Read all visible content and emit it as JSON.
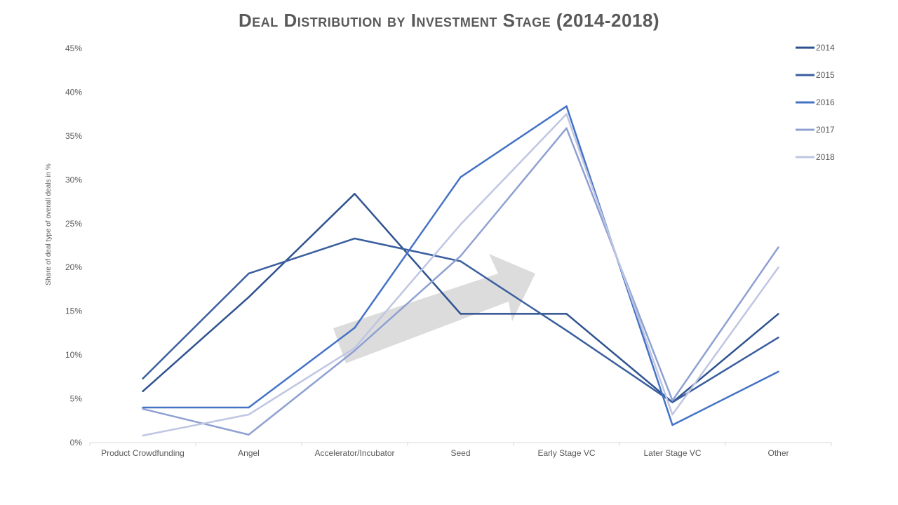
{
  "chart_data": {
    "type": "line",
    "title": "Deal Distribution by Investment Stage (2014-2018)",
    "xlabel": "",
    "ylabel": "Share of deal type of overall deals in %",
    "ylim": [
      0,
      45
    ],
    "yticks": [
      "0%",
      "5%",
      "10%",
      "15%",
      "20%",
      "25%",
      "30%",
      "35%",
      "40%",
      "45%"
    ],
    "categories": [
      "Product Crowdfunding",
      "Angel",
      "Accelerator/Incubator",
      "Seed",
      "Early Stage VC",
      "Later Stage VC",
      "Other"
    ],
    "legend_position": "right",
    "grid": false,
    "series": [
      {
        "name": "2014",
        "color": "#2f528f",
        "values": [
          5.85,
          16.6,
          28.4,
          14.7,
          14.7,
          4.6,
          14.7
        ]
      },
      {
        "name": "2015",
        "color": "#3a5e9e",
        "values": [
          7.3,
          19.3,
          23.3,
          20.7,
          12.8,
          4.6,
          12.0
        ]
      },
      {
        "name": "2016",
        "color": "#4472c4",
        "values": [
          4.0,
          4.0,
          13.1,
          30.3,
          38.4,
          2.0,
          8.1
        ]
      },
      {
        "name": "2017",
        "color": "#8ea0d2",
        "values": [
          3.85,
          0.9,
          10.5,
          21.3,
          35.9,
          4.8,
          22.3
        ]
      },
      {
        "name": "2018",
        "color": "#bfc6e2",
        "values": [
          0.8,
          3.2,
          10.8,
          24.9,
          37.5,
          3.2,
          20.0
        ]
      }
    ],
    "annotation": "trend-arrow"
  }
}
